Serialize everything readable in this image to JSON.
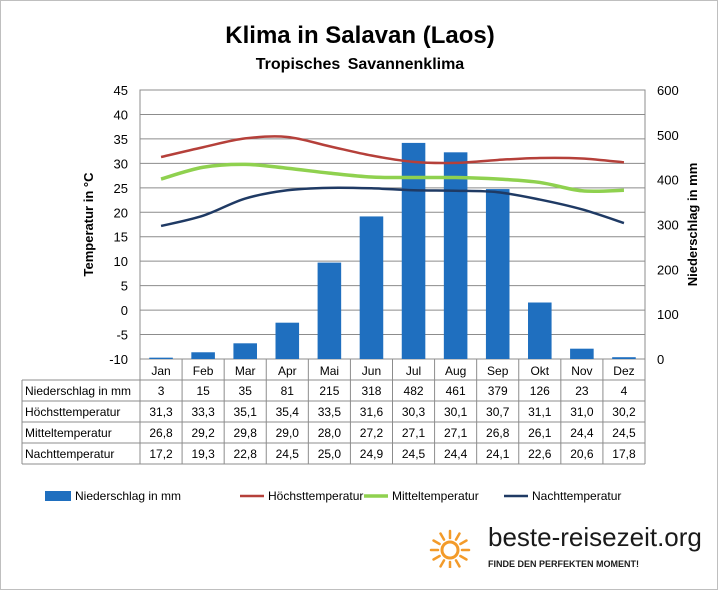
{
  "chart_data": {
    "type": "bar+line",
    "title": "Klima in Salavan (Laos)",
    "subtitle": "Tropisches Savannenklima",
    "categories": [
      "Jan",
      "Feb",
      "Mar",
      "Apr",
      "Mai",
      "Jun",
      "Jul",
      "Aug",
      "Sep",
      "Okt",
      "Nov",
      "Dez"
    ],
    "y_left": {
      "label": "Temperatur in °C",
      "range": [
        -10,
        45
      ],
      "ticks": [
        "45",
        "40",
        "35",
        "30",
        "25",
        "20",
        "15",
        "10",
        "5",
        "0",
        "-5",
        "-10"
      ]
    },
    "y_right": {
      "label": "Niederschlag in mm",
      "range": [
        0,
        600
      ],
      "ticks": [
        "600",
        "500",
        "400",
        "300",
        "200",
        "100",
        "0"
      ]
    },
    "grid": true,
    "legend_position": "bottom",
    "series": [
      {
        "name": "Niederschlag in mm",
        "kind": "bar",
        "axis": "right",
        "color": "#1f6fbf",
        "values": [
          3,
          15,
          35,
          81,
          215,
          318,
          482,
          461,
          379,
          126,
          23,
          4
        ],
        "labels": [
          "3",
          "15",
          "35",
          "81",
          "215",
          "318",
          "482",
          "461",
          "379",
          "126",
          "23",
          "4"
        ]
      },
      {
        "name": "Höchsttemperatur",
        "kind": "line",
        "axis": "left",
        "color": "#b5403a",
        "values": [
          31.3,
          33.3,
          35.1,
          35.4,
          33.5,
          31.6,
          30.3,
          30.1,
          30.7,
          31.1,
          31.0,
          30.2
        ],
        "labels": [
          "31,3",
          "33,3",
          "35,1",
          "35,4",
          "33,5",
          "31,6",
          "30,3",
          "30,1",
          "30,7",
          "31,1",
          "31,0",
          "30,2"
        ]
      },
      {
        "name": "Mitteltemperatur",
        "kind": "line",
        "axis": "left",
        "color": "#8fd14f",
        "values": [
          26.8,
          29.2,
          29.8,
          29.0,
          28.0,
          27.2,
          27.1,
          27.1,
          26.8,
          26.1,
          24.4,
          24.5
        ],
        "labels": [
          "26,8",
          "29,2",
          "29,8",
          "29,0",
          "28,0",
          "27,2",
          "27,1",
          "27,1",
          "26,8",
          "26,1",
          "24,4",
          "24,5"
        ]
      },
      {
        "name": "Nachttemperatur",
        "kind": "line",
        "axis": "left",
        "color": "#1f3a64",
        "values": [
          17.2,
          19.3,
          22.8,
          24.5,
          25.0,
          24.9,
          24.5,
          24.4,
          24.1,
          22.6,
          20.6,
          17.8
        ],
        "labels": [
          "17,2",
          "19,3",
          "22,8",
          "24,5",
          "25,0",
          "24,9",
          "24,5",
          "24,4",
          "24,1",
          "22,6",
          "20,6",
          "17,8"
        ]
      }
    ]
  },
  "branding": {
    "logo_text": "beste-reisezeit.org",
    "tagline": "FINDE DEN PERFEKTEN MOMENT!",
    "logo_icon": "sun-icon",
    "logo_color": "#f39b2a"
  }
}
